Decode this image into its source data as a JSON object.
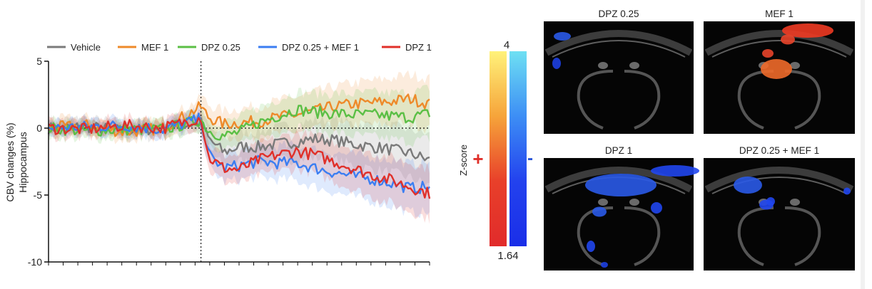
{
  "chart_data": {
    "type": "line",
    "title": "",
    "ylabel_line1": "CBV changes (%)",
    "ylabel_line2": "Hippocampus",
    "xlabel": "",
    "ylim": [
      -10,
      5
    ],
    "y_ticks": [
      5,
      0,
      -5,
      -10
    ],
    "x_range": [
      0,
      100
    ],
    "injection_x": 40,
    "legend_position": "top",
    "series": [
      {
        "name": "Vehicle",
        "color": "#7a7a7a",
        "x": [
          0,
          10,
          20,
          30,
          40,
          42,
          46,
          50,
          55,
          60,
          65,
          70,
          75,
          80,
          85,
          90,
          95,
          100
        ],
        "y": [
          0,
          0.1,
          -0.2,
          0,
          0.4,
          -0.8,
          -1.8,
          -1.4,
          -1.4,
          -1.2,
          -1.0,
          -0.8,
          -0.9,
          -1.2,
          -1.4,
          -1.6,
          -1.9,
          -2.4
        ]
      },
      {
        "name": "MEF 1",
        "color": "#ee8a2a",
        "x": [
          0,
          10,
          20,
          30,
          40,
          42,
          46,
          50,
          55,
          60,
          65,
          70,
          75,
          80,
          85,
          90,
          95,
          100
        ],
        "y": [
          0,
          0.2,
          -0.3,
          0,
          1.6,
          0.8,
          0.3,
          0.4,
          0.5,
          0.8,
          1.0,
          1.3,
          1.6,
          1.8,
          1.9,
          2.0,
          2.2,
          1.8
        ]
      },
      {
        "name": "DPZ 0.25",
        "color": "#5bbf45",
        "x": [
          0,
          10,
          20,
          30,
          40,
          42,
          46,
          50,
          55,
          60,
          65,
          70,
          75,
          80,
          85,
          90,
          95,
          100
        ],
        "y": [
          0,
          -0.2,
          -0.1,
          -0.1,
          0.6,
          -0.2,
          -0.6,
          -0.3,
          0.4,
          0.9,
          1.4,
          1.2,
          1.1,
          1.0,
          1.0,
          0.9,
          0.8,
          1.1
        ]
      },
      {
        "name": "DPZ 0.25 + MEF 1",
        "color": "#3b7ef2",
        "x": [
          0,
          10,
          20,
          30,
          40,
          42,
          46,
          50,
          55,
          60,
          65,
          70,
          75,
          80,
          85,
          90,
          95,
          100
        ],
        "y": [
          0,
          0.1,
          0.2,
          -0.1,
          0.7,
          -2.0,
          -3.0,
          -2.8,
          -2.5,
          -2.6,
          -2.6,
          -3.0,
          -3.3,
          -3.6,
          -3.8,
          -4.1,
          -4.5,
          -4.4
        ]
      },
      {
        "name": "DPZ 1",
        "color": "#e0302a",
        "x": [
          0,
          10,
          20,
          30,
          40,
          42,
          46,
          50,
          55,
          60,
          65,
          70,
          75,
          80,
          85,
          90,
          95,
          100
        ],
        "y": [
          0,
          -0.1,
          0.2,
          0,
          0.8,
          -2.2,
          -3.0,
          -3.1,
          -2.4,
          -2.0,
          -1.7,
          -2.0,
          -2.5,
          -3.0,
          -3.5,
          -3.9,
          -4.4,
          -4.9
        ]
      }
    ]
  },
  "colorbar": {
    "max_label": "4",
    "min_label": "1.64",
    "axis_label": "Z-score",
    "positive_sign": "+",
    "negative_sign": "-",
    "positive_stops": [
      "#fff27a",
      "#f6a43a",
      "#e8402a",
      "#e12b2b"
    ],
    "negative_stops": [
      "#6ee0f3",
      "#3d8ef5",
      "#2342ee",
      "#1a2ee8"
    ]
  },
  "panels": [
    {
      "label": "DPZ 0.25"
    },
    {
      "label": "MEF 1"
    },
    {
      "label": "DPZ 1"
    },
    {
      "label": "DPZ 0.25 + MEF 1"
    }
  ]
}
